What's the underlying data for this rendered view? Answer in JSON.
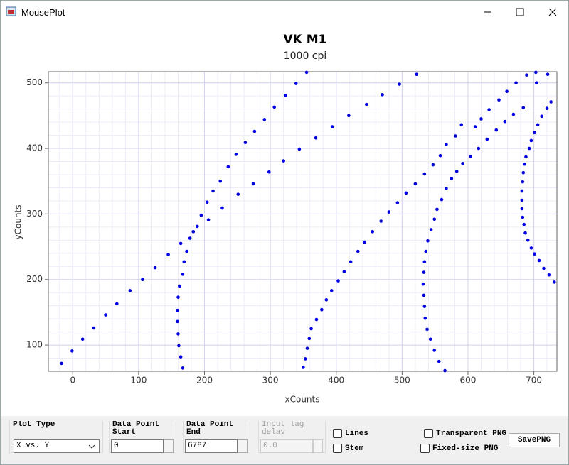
{
  "window": {
    "title": "MousePlot"
  },
  "chart_data": {
    "type": "scatter",
    "title": "VK M1",
    "subtitle": "1000 cpi",
    "xlabel": "xCounts",
    "ylabel": "yCounts",
    "color": "#0000e0",
    "x": [
      -17,
      -1,
      15,
      32,
      50,
      67,
      87,
      106,
      125,
      145,
      164,
      173,
      169,
      167,
      162,
      160,
      159,
      159,
      160,
      161,
      164,
      167,
      178,
      183,
      189,
      195,
      204,
      213,
      224,
      236,
      248,
      262,
      276,
      291,
      306,
      323,
      339,
      355,
      206,
      227,
      251,
      274,
      298,
      320,
      344,
      369,
      394,
      419,
      446,
      470,
      496,
      522,
      350,
      353,
      356,
      359,
      362,
      370,
      378,
      385,
      393,
      403,
      412,
      422,
      433,
      443,
      455,
      468,
      480,
      493,
      506,
      520,
      534,
      547,
      558,
      567,
      581,
      590,
      611,
      620,
      632,
      647,
      659,
      673,
      689,
      565,
      556,
      549,
      543,
      538,
      535,
      534,
      533,
      532,
      533,
      534,
      536,
      539,
      544,
      549,
      553,
      560,
      567,
      575,
      583,
      592,
      604,
      616,
      629,
      643,
      656,
      669,
      684,
      703,
      731,
      723,
      715,
      708,
      701,
      696,
      691,
      687,
      685,
      683,
      682,
      682,
      682,
      683,
      684,
      686,
      688,
      693,
      696,
      701,
      706,
      712,
      720,
      726,
      704,
      721
    ],
    "values": [
      72,
      91,
      109,
      126,
      146,
      163,
      183,
      200,
      218,
      238,
      255,
      243,
      227,
      208,
      190,
      173,
      153,
      136,
      117,
      99,
      82,
      65,
      263,
      273,
      281,
      298,
      318,
      335,
      350,
      372,
      391,
      409,
      426,
      444,
      463,
      481,
      499,
      516,
      291,
      309,
      330,
      346,
      364,
      381,
      399,
      416,
      433,
      450,
      467,
      482,
      498,
      513,
      66,
      79,
      95,
      110,
      125,
      139,
      154,
      169,
      183,
      198,
      212,
      227,
      243,
      257,
      273,
      289,
      303,
      317,
      332,
      346,
      361,
      375,
      389,
      406,
      419,
      436,
      433,
      445,
      459,
      474,
      487,
      500,
      512,
      61,
      75,
      92,
      109,
      124,
      141,
      159,
      176,
      193,
      211,
      227,
      243,
      259,
      276,
      292,
      307,
      322,
      339,
      354,
      365,
      377,
      388,
      400,
      414,
      428,
      441,
      452,
      462,
      516,
      196,
      207,
      217,
      229,
      239,
      248,
      260,
      271,
      284,
      295,
      308,
      321,
      335,
      349,
      363,
      376,
      387,
      400,
      412,
      424,
      436,
      449,
      461,
      471,
      500,
      513
    ],
    "xlim": [
      -37,
      735
    ],
    "ylim": [
      60,
      517
    ],
    "xticks": [
      0,
      100,
      200,
      300,
      400,
      500,
      600,
      700
    ],
    "yticks": [
      100,
      200,
      300,
      400,
      500
    ],
    "grid": true,
    "minor_divisions": 5
  },
  "controls": {
    "plot_type": {
      "label": "Plot Type",
      "value": "X vs. Y"
    },
    "start": {
      "label": "Data Point Start",
      "value": "0"
    },
    "end": {
      "label": "Data Point End",
      "value": "6787"
    },
    "input_lag": {
      "label": "Input lag delay",
      "value": "0.0"
    },
    "checkboxes": [
      "Lines",
      "Stem",
      "Transparent PNG",
      "Fixed-size PNG"
    ],
    "button": "SavePNG"
  }
}
